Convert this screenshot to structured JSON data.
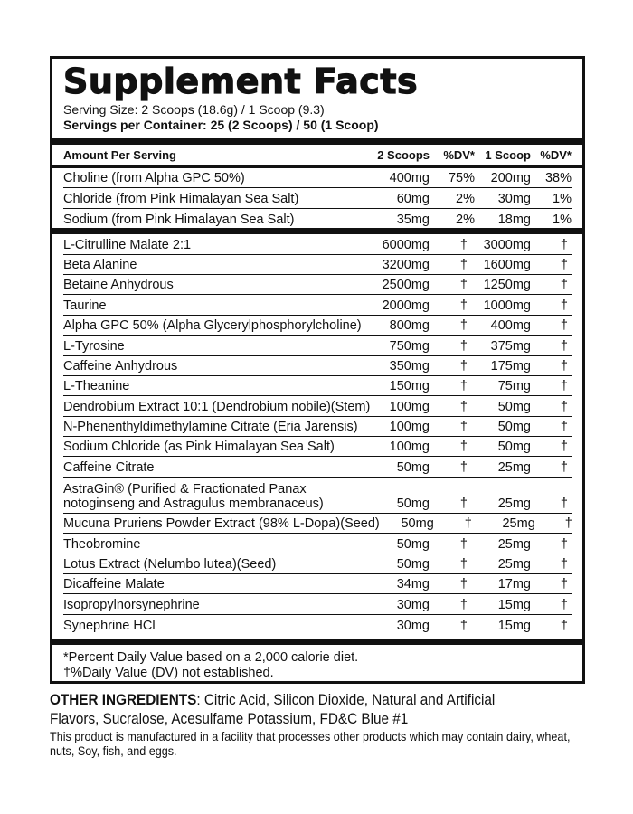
{
  "title": "Supplement Facts",
  "serving_size": "Serving Size: 2 Scoops (18.6g) / 1 Scoop (9.3)",
  "servings_per_container": "Servings per Container: 25 (2 Scoops)  / 50 (1 Scoop)",
  "header": {
    "label": "Amount Per Serving",
    "col1": "2 Scoops",
    "col2": "%DV*",
    "col3": "1 Scoop",
    "col4": "%DV*"
  },
  "nutrients": [
    [
      "Choline (from Alpha GPC 50%)",
      "400mg",
      "75%",
      "200mg",
      "38%"
    ],
    [
      "Chloride (from Pink Himalayan Sea Salt)",
      "60mg",
      "2%",
      "30mg",
      "1%"
    ],
    [
      "Sodium (from Pink Himalayan Sea Salt)",
      "35mg",
      "2%",
      "18mg",
      "1%"
    ]
  ],
  "ingredients": [
    [
      "L-Citrulline Malate 2:1",
      "6000mg",
      "†",
      "3000mg",
      "†"
    ],
    [
      "Beta Alanine",
      "3200mg",
      "†",
      "1600mg",
      "†"
    ],
    [
      "Betaine Anhydrous",
      "2500mg",
      "†",
      "1250mg",
      "†"
    ],
    [
      "Taurine",
      "2000mg",
      "†",
      "1000mg",
      "†"
    ],
    [
      "Alpha GPC 50% (Alpha Glycerylphosphorylcholine)",
      "800mg",
      "†",
      "400mg",
      "†"
    ],
    [
      "L-Tyrosine",
      "750mg",
      "†",
      "375mg",
      "†"
    ],
    [
      "Caffeine Anhydrous",
      "350mg",
      "†",
      "175mg",
      "†"
    ],
    [
      "L-Theanine",
      "150mg",
      "†",
      "75mg",
      "†"
    ],
    [
      "Dendrobium Extract 10:1 (Dendrobium nobile)(Stem)",
      "100mg",
      "†",
      "50mg",
      "†"
    ],
    [
      "N-Phenenthyldimethylamine Citrate (Eria Jarensis)",
      "100mg",
      "†",
      "50mg",
      "†"
    ],
    [
      "Sodium Chloride (as Pink Himalayan Sea Salt)",
      "100mg",
      "†",
      "50mg",
      "†"
    ],
    [
      "Caffeine Citrate",
      "50mg",
      "†",
      "25mg",
      "†"
    ],
    [
      "AstraGin® (Purified & Fractionated Panax notoginseng and Astragulus membranaceus)",
      "50mg",
      "†",
      "25mg",
      "†"
    ],
    [
      "Mucuna Pruriens Powder Extract (98% L-Dopa)(Seed)",
      "50mg",
      "†",
      "25mg",
      "†"
    ],
    [
      "Theobromine",
      "50mg",
      "†",
      "25mg",
      "†"
    ],
    [
      "Lotus Extract (Nelumbo lutea)(Seed)",
      "50mg",
      "†",
      "25mg",
      "†"
    ],
    [
      "Dicaffeine Malate",
      "34mg",
      "†",
      "17mg",
      "†"
    ],
    [
      "Isopropylnorsynephrine",
      "30mg",
      "†",
      "15mg",
      "†"
    ],
    [
      "Synephrine HCl",
      "30mg",
      "†",
      "15mg",
      "†"
    ]
  ],
  "footnotes": [
    "*Percent Daily Value based on a 2,000 calorie diet.",
    "†%Daily Value (DV) not established."
  ],
  "other_ingredients": {
    "label": "OTHER INGREDIENTS",
    "text": ": Citric Acid, Silicon Dioxide, Natural and Artificial Flavors, Sucralose, Acesulfame Potassium, FD&C Blue #1"
  },
  "disclaimer": "This product is manufactured in a facility that processes other products which may contain dairy, wheat, nuts, Soy, fish, and eggs."
}
